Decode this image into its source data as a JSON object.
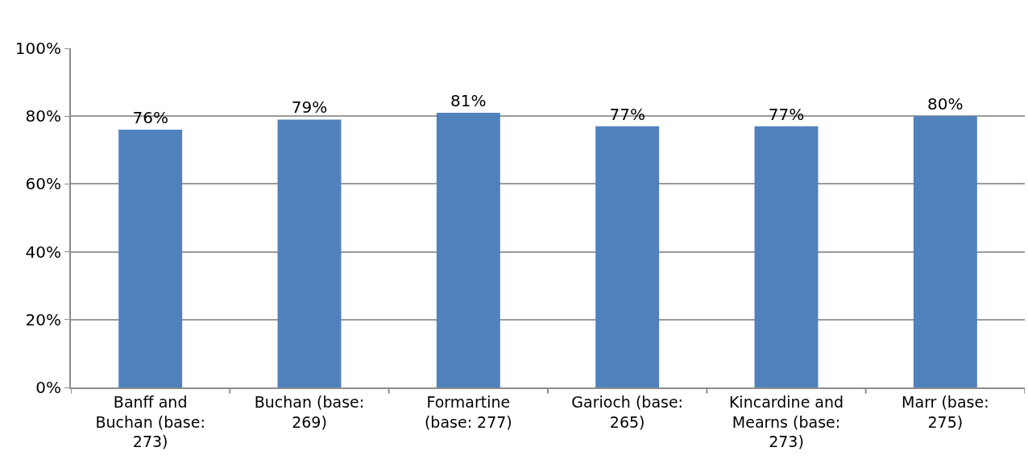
{
  "chart_data": {
    "type": "bar",
    "categories": [
      "Banff and Buchan (base: 273)",
      "Buchan (base: 269)",
      "Formartine (base: 277)",
      "Garioch (base: 265)",
      "Kincardine and Mearns (base: 273)",
      "Marr (base: 275)"
    ],
    "values": [
      76,
      79,
      81,
      77,
      77,
      80
    ],
    "color": "#4f81bd",
    "ylim": [
      0,
      100
    ],
    "yticks": [
      {
        "value": 0,
        "label": "0%"
      },
      {
        "value": 20,
        "label": "20%"
      },
      {
        "value": 40,
        "label": "40%"
      },
      {
        "value": 60,
        "label": "60%"
      },
      {
        "value": 80,
        "label": "80%"
      },
      {
        "value": 100,
        "label": "100%"
      }
    ],
    "grid": "y",
    "data_labels": true,
    "value_labels": [
      "76%",
      "79%",
      "81%",
      "77%",
      "77%",
      "80%"
    ]
  }
}
